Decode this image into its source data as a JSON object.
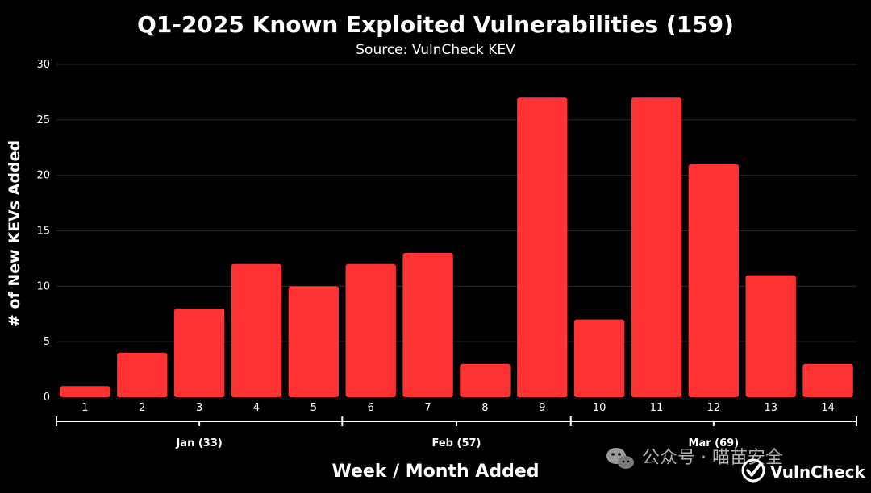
{
  "chart_data": {
    "type": "bar",
    "title": "Q1-2025 Known Exploited Vulnerabilities (159)",
    "subtitle": "Source: VulnCheck KEV",
    "xlabel": "Week / Month Added",
    "ylabel": "# of New KEVs Added",
    "categories": [
      "1",
      "2",
      "3",
      "4",
      "5",
      "6",
      "7",
      "8",
      "9",
      "10",
      "11",
      "12",
      "13",
      "14"
    ],
    "values": [
      1,
      4,
      8,
      12,
      10,
      12,
      13,
      3,
      27,
      7,
      27,
      21,
      11,
      3
    ],
    "ylim": [
      0,
      30
    ],
    "yticks": [
      0,
      5,
      10,
      15,
      20,
      25,
      30
    ],
    "grid": true,
    "bar_color": "#ff3333",
    "groups": [
      {
        "label": "Jan (33)",
        "categories": [
          "1",
          "2",
          "3",
          "4",
          "5"
        ]
      },
      {
        "label": "Feb (57)",
        "categories": [
          "6",
          "7",
          "8",
          "9"
        ]
      },
      {
        "label": "Mar (69)",
        "categories": [
          "10",
          "11",
          "12",
          "13",
          "14"
        ]
      }
    ]
  },
  "watermark": {
    "text": "公众号 · 喵苗安全",
    "icon": "wechat-icon"
  },
  "logo": {
    "text": "VulnCheck",
    "icon": "check-circle-icon"
  }
}
